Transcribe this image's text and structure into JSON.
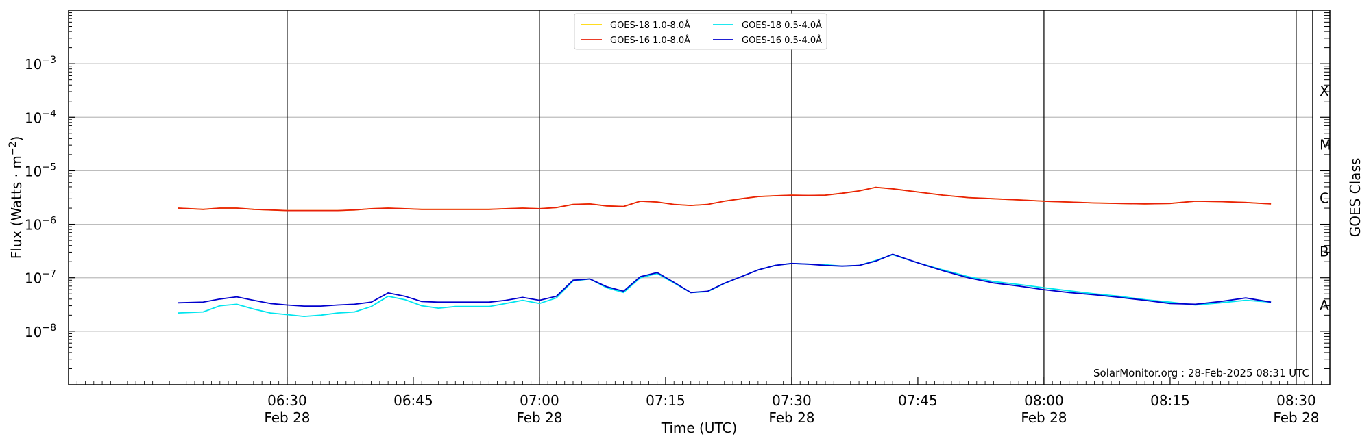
{
  "chart_data": {
    "type": "line",
    "xlabel": "Time (UTC)",
    "ylabel": "Flux (Watts · m",
    "ylabel_exp": "−2",
    "ylabel_close": ")",
    "yscale": "log",
    "xlim": [
      "06:04",
      "08:34"
    ],
    "ylim": [
      1e-09,
      0.01
    ],
    "grid": "horizontal",
    "legend_position": "top-center",
    "x_ticks": [
      {
        "time": "06:30",
        "date": "Feb 28"
      },
      {
        "time": "06:45",
        "date": ""
      },
      {
        "time": "07:00",
        "date": "Feb 28"
      },
      {
        "time": "07:15",
        "date": ""
      },
      {
        "time": "07:30",
        "date": "Feb 28"
      },
      {
        "time": "07:45",
        "date": ""
      },
      {
        "time": "08:00",
        "date": "Feb 28"
      },
      {
        "time": "08:15",
        "date": ""
      },
      {
        "time": "08:30",
        "date": "Feb 28"
      }
    ],
    "vertical_lines": [
      "06:30",
      "07:00",
      "07:30",
      "08:00",
      "08:30"
    ],
    "y_ticks": [
      {
        "value": 1e-08,
        "base": "10",
        "exp": "−8"
      },
      {
        "value": 1e-07,
        "base": "10",
        "exp": "−7"
      },
      {
        "value": 1e-06,
        "base": "10",
        "exp": "−6"
      },
      {
        "value": 1e-05,
        "base": "10",
        "exp": "−5"
      },
      {
        "value": 0.0001,
        "base": "10",
        "exp": "−4"
      },
      {
        "value": 0.001,
        "base": "10",
        "exp": "−3"
      }
    ],
    "right_axis": {
      "label": "GOES Class",
      "classes": [
        {
          "label": "A",
          "value": 3.162e-08
        },
        {
          "label": "B",
          "value": 3.162e-07
        },
        {
          "label": "C",
          "value": 3.162e-06
        },
        {
          "label": "M",
          "value": 3.162e-05
        },
        {
          "label": "X",
          "value": 0.0003162
        }
      ]
    },
    "x": [
      "06:17",
      "06:20",
      "06:22",
      "06:24",
      "06:26",
      "06:28",
      "06:30",
      "06:32",
      "06:34",
      "06:36",
      "06:38",
      "06:40",
      "06:42",
      "06:44",
      "06:46",
      "06:48",
      "06:50",
      "06:52",
      "06:54",
      "06:56",
      "06:58",
      "07:00",
      "07:02",
      "07:04",
      "07:06",
      "07:08",
      "07:10",
      "07:12",
      "07:14",
      "07:16",
      "07:18",
      "07:20",
      "07:22",
      "07:24",
      "07:26",
      "07:28",
      "07:30",
      "07:32",
      "07:34",
      "07:36",
      "07:38",
      "07:40",
      "07:42",
      "07:45",
      "07:48",
      "07:51",
      "07:54",
      "07:57",
      "08:00",
      "08:03",
      "08:06",
      "08:09",
      "08:12",
      "08:15",
      "08:18",
      "08:21",
      "08:24",
      "08:27"
    ],
    "series": [
      {
        "name": "GOES-18 1.0-8.0Å",
        "color": "#ffd700",
        "values": [
          2e-06,
          1.9e-06,
          2e-06,
          2e-06,
          1.9e-06,
          1.85e-06,
          1.8e-06,
          1.8e-06,
          1.8e-06,
          1.8e-06,
          1.85e-06,
          1.95e-06,
          2e-06,
          1.95e-06,
          1.9e-06,
          1.9e-06,
          1.9e-06,
          1.9e-06,
          1.9e-06,
          1.95e-06,
          2e-06,
          1.95e-06,
          2.05e-06,
          2.35e-06,
          2.4e-06,
          2.2e-06,
          2.15e-06,
          2.7e-06,
          2.6e-06,
          2.35e-06,
          2.25e-06,
          2.35e-06,
          2.7e-06,
          3e-06,
          3.3e-06,
          3.4e-06,
          3.5e-06,
          3.45e-06,
          3.5e-06,
          3.8e-06,
          4.2e-06,
          4.9e-06,
          4.6e-06,
          4e-06,
          3.5e-06,
          3.15e-06,
          3e-06,
          2.85e-06,
          2.7e-06,
          2.6e-06,
          2.5e-06,
          2.45e-06,
          2.4e-06,
          2.45e-06,
          2.7e-06,
          2.65e-06,
          2.55e-06,
          2.4e-06
        ]
      },
      {
        "name": "GOES-16 1.0-8.0Å",
        "color": "#e8200a",
        "values": [
          2e-06,
          1.9e-06,
          2e-06,
          2e-06,
          1.9e-06,
          1.85e-06,
          1.8e-06,
          1.8e-06,
          1.8e-06,
          1.8e-06,
          1.85e-06,
          1.95e-06,
          2e-06,
          1.95e-06,
          1.9e-06,
          1.9e-06,
          1.9e-06,
          1.9e-06,
          1.9e-06,
          1.95e-06,
          2e-06,
          1.95e-06,
          2.05e-06,
          2.35e-06,
          2.4e-06,
          2.2e-06,
          2.15e-06,
          2.7e-06,
          2.6e-06,
          2.35e-06,
          2.25e-06,
          2.35e-06,
          2.7e-06,
          3e-06,
          3.3e-06,
          3.4e-06,
          3.5e-06,
          3.45e-06,
          3.5e-06,
          3.8e-06,
          4.2e-06,
          4.9e-06,
          4.6e-06,
          4e-06,
          3.5e-06,
          3.15e-06,
          3e-06,
          2.85e-06,
          2.7e-06,
          2.6e-06,
          2.5e-06,
          2.45e-06,
          2.4e-06,
          2.45e-06,
          2.7e-06,
          2.65e-06,
          2.55e-06,
          2.4e-06
        ]
      },
      {
        "name": "GOES-18 0.5-4.0Å",
        "color": "#00e5ee",
        "values": [
          2.2e-08,
          2.3e-08,
          3e-08,
          3.2e-08,
          2.6e-08,
          2.2e-08,
          2.05e-08,
          1.9e-08,
          2e-08,
          2.2e-08,
          2.3e-08,
          2.9e-08,
          4.5e-08,
          3.9e-08,
          3e-08,
          2.7e-08,
          2.9e-08,
          2.9e-08,
          2.9e-08,
          3.3e-08,
          3.8e-08,
          3.3e-08,
          4.2e-08,
          8.7e-08,
          9.5e-08,
          6.5e-08,
          5.3e-08,
          1e-07,
          1.2e-07,
          8e-08,
          5.3e-08,
          5.5e-08,
          7.8e-08,
          1.05e-07,
          1.4e-07,
          1.7e-07,
          1.85e-07,
          1.8e-07,
          1.75e-07,
          1.65e-07,
          1.7e-07,
          2.1e-07,
          2.7e-07,
          1.9e-07,
          1.4e-07,
          1.05e-07,
          8.5e-08,
          7.5e-08,
          6.5e-08,
          5.7e-08,
          5e-08,
          4.5e-08,
          3.9e-08,
          3.5e-08,
          3.1e-08,
          3.4e-08,
          3.8e-08,
          3.5e-08
        ]
      },
      {
        "name": "GOES-16 0.5-4.0Å",
        "color": "#0000cd",
        "values": [
          3.4e-08,
          3.5e-08,
          4e-08,
          4.4e-08,
          3.8e-08,
          3.3e-08,
          3.1e-08,
          2.95e-08,
          2.95e-08,
          3.1e-08,
          3.2e-08,
          3.5e-08,
          5.2e-08,
          4.5e-08,
          3.6e-08,
          3.5e-08,
          3.5e-08,
          3.5e-08,
          3.5e-08,
          3.8e-08,
          4.3e-08,
          3.8e-08,
          4.5e-08,
          9e-08,
          9.5e-08,
          6.8e-08,
          5.6e-08,
          1.05e-07,
          1.25e-07,
          8.2e-08,
          5.3e-08,
          5.6e-08,
          7.9e-08,
          1.05e-07,
          1.4e-07,
          1.7e-07,
          1.85e-07,
          1.8e-07,
          1.7e-07,
          1.65e-07,
          1.7e-07,
          2.05e-07,
          2.75e-07,
          1.9e-07,
          1.35e-07,
          1e-07,
          8e-08,
          7e-08,
          6e-08,
          5.3e-08,
          4.8e-08,
          4.3e-08,
          3.8e-08,
          3.3e-08,
          3.2e-08,
          3.6e-08,
          4.2e-08,
          3.5e-08
        ]
      }
    ],
    "credit": "SolarMonitor.org : 28-Feb-2025 08:31 UTC"
  }
}
